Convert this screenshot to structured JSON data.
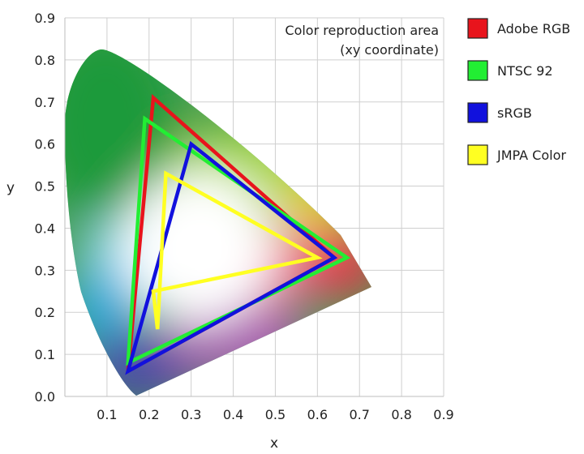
{
  "chart_data": {
    "type": "line",
    "title": "",
    "annotation": [
      "Color reproduction area",
      "(xy coordinate)"
    ],
    "xlabel": "x",
    "ylabel": "y",
    "xlim": [
      0,
      0.9
    ],
    "ylim": [
      0,
      0.9
    ],
    "x_ticks": [
      "0.1",
      "0.2",
      "0.3",
      "0.4",
      "0.5",
      "0.6",
      "0.7",
      "0.8",
      "0.9"
    ],
    "y_ticks": [
      "0.0",
      "0.1",
      "0.2",
      "0.3",
      "0.4",
      "0.5",
      "0.6",
      "0.7",
      "0.8",
      "0.9"
    ],
    "grid": true,
    "legend_position": "right",
    "background": "CIE 1931 chromaticity diagram",
    "series": [
      {
        "name": "Adobe RGB",
        "color": "#e8141c",
        "points": [
          {
            "x": 0.21,
            "y": 0.71
          },
          {
            "x": 0.64,
            "y": 0.33
          },
          {
            "x": 0.15,
            "y": 0.06
          }
        ]
      },
      {
        "name": "NTSC 92",
        "color": "#22ee33",
        "points": [
          {
            "x": 0.19,
            "y": 0.66
          },
          {
            "x": 0.67,
            "y": 0.33
          },
          {
            "x": 0.15,
            "y": 0.08
          }
        ]
      },
      {
        "name": "sRGB",
        "color": "#1111dd",
        "points": [
          {
            "x": 0.3,
            "y": 0.6
          },
          {
            "x": 0.64,
            "y": 0.33
          },
          {
            "x": 0.15,
            "y": 0.06
          }
        ]
      },
      {
        "name": "JMPA Color",
        "color": "#ffff22",
        "points": [
          {
            "x": 0.24,
            "y": 0.53
          },
          {
            "x": 0.6,
            "y": 0.33
          },
          {
            "x": 0.21,
            "y": 0.25
          },
          {
            "x": 0.22,
            "y": 0.16
          }
        ]
      }
    ]
  }
}
